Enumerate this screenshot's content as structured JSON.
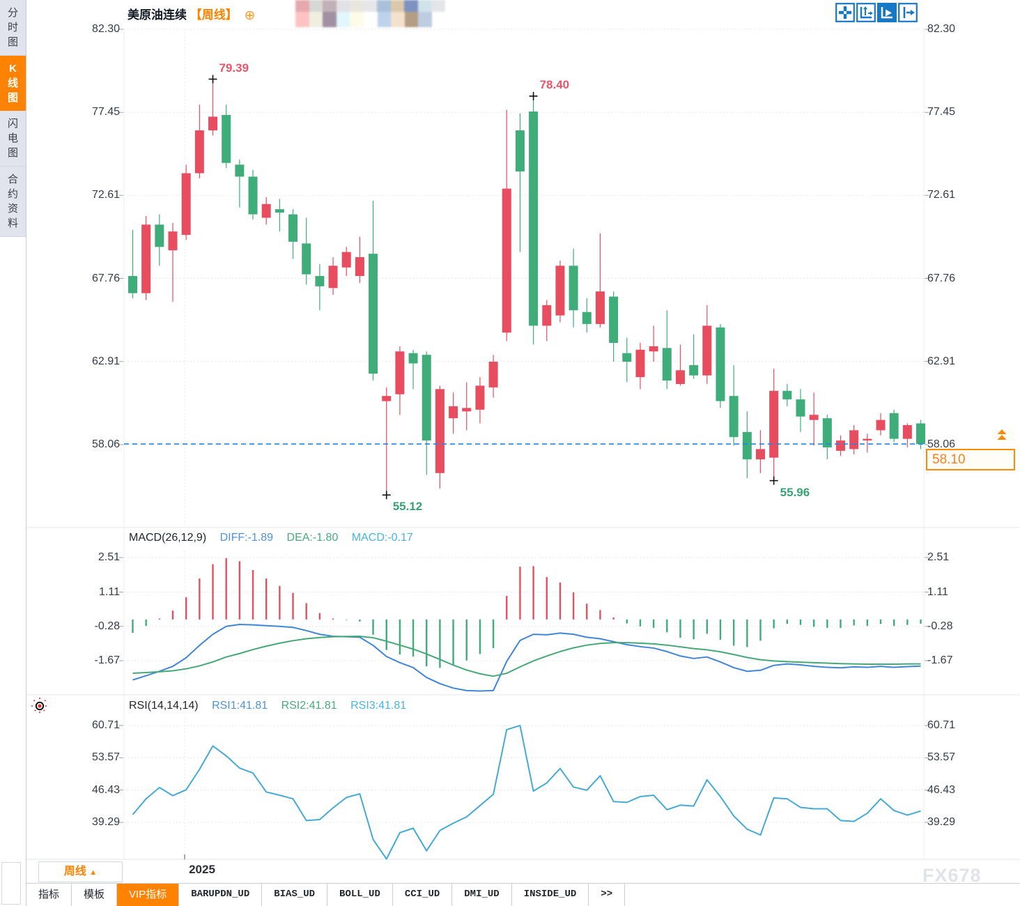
{
  "header": {
    "title": "美原油连续",
    "period_tag": "【周线】",
    "plus_glyph": "⊕",
    "mosaic_row1": [
      "#e5a9ad",
      "#d6d8d4",
      "#c2b0b8",
      "#e1e1e7",
      "#e8e7df",
      "#e5e7e9",
      "#a9c1d9",
      "#dcc9ab",
      "#7d92c1",
      "#d0e2ea",
      "#e3e5e9"
    ],
    "mosaic_row2": [
      "#ffc3c3",
      "#efeee0",
      "#a18fa2",
      "#e1f7fb",
      "#fdfbe9",
      "#ffffff",
      "#bdd3eb",
      "#f4e1cd",
      "#b59d85",
      "#bdcce1"
    ]
  },
  "sidebar": {
    "items": [
      {
        "label": "分时图",
        "active": false
      },
      {
        "label": "K线图",
        "active": true
      },
      {
        "label": "闪电图",
        "active": false
      },
      {
        "label": "合约资料",
        "active": false
      }
    ]
  },
  "toolbar_icons": [
    {
      "name": "pan-crosshair-icon",
      "active": false
    },
    {
      "name": "axis-zoom-icon",
      "active": false
    },
    {
      "name": "axis-play-icon",
      "active": true
    },
    {
      "name": "shift-right-icon",
      "active": false
    }
  ],
  "price_box": {
    "value": "58.10"
  },
  "indicators": {
    "macd": {
      "name": "MACD(26,12,9)",
      "diff": "DIFF:-1.89",
      "dea": "DEA:-1.80",
      "macd": "MACD:-0.17"
    },
    "rsi": {
      "name": "RSI(14,14,14)",
      "rsi1": "RSI1:41.81",
      "rsi2": "RSI2:41.81",
      "rsi3": "RSI3:41.81"
    }
  },
  "bottom": {
    "period_button": "周线",
    "period_arrow": "▲",
    "year_label": "2025",
    "tabs": [
      {
        "label": "指标",
        "active": false,
        "mono": false
      },
      {
        "label": "模板",
        "active": false,
        "mono": false
      },
      {
        "label": "VIP指标",
        "active": true,
        "mono": false
      },
      {
        "label": "BARUPDN_UD",
        "active": false,
        "mono": true
      },
      {
        "label": "BIAS_UD",
        "active": false,
        "mono": true
      },
      {
        "label": "BOLL_UD",
        "active": false,
        "mono": true
      },
      {
        "label": "CCI_UD",
        "active": false,
        "mono": true
      },
      {
        "label": "DMI_UD",
        "active": false,
        "mono": true
      },
      {
        "label": "INSIDE_UD",
        "active": false,
        "mono": true
      },
      {
        "label": ">>",
        "active": false,
        "mono": true
      }
    ],
    "watermark": "FX678"
  },
  "chart_data": [
    {
      "type": "candlestick",
      "title": "美原油连续 周线",
      "up_color": "#e74c5f",
      "down_color": "#3fad79",
      "y_axis_ticks": [
        "82.30",
        "77.45",
        "72.61",
        "67.76",
        "62.91",
        "58.06"
      ],
      "ylim": [
        53.3,
        82.3
      ],
      "x_tick_labels": [
        "2025"
      ],
      "last_price": 58.1,
      "last_price_line_color": "#1f86e8",
      "annotations": [
        {
          "candle_index": 6,
          "position": "high",
          "label": "79.39",
          "color": "#e8556a"
        },
        {
          "candle_index": 30,
          "position": "high",
          "label": "78.40",
          "color": "#e8556a"
        },
        {
          "candle_index": 19,
          "position": "low",
          "label": "55.12",
          "color": "#38a273"
        },
        {
          "candle_index": 48,
          "position": "low",
          "label": "55.96",
          "color": "#38a273"
        }
      ],
      "candles_ohlc": [
        [
          67.9,
          70.6,
          66.6,
          66.9
        ],
        [
          66.9,
          71.4,
          66.5,
          70.9
        ],
        [
          70.9,
          71.5,
          68.5,
          69.6
        ],
        [
          69.4,
          71.0,
          66.4,
          70.5
        ],
        [
          70.3,
          74.4,
          70.0,
          73.9
        ],
        [
          73.9,
          77.9,
          73.6,
          76.4
        ],
        [
          76.4,
          79.39,
          76.1,
          77.2
        ],
        [
          77.3,
          77.9,
          74.2,
          74.5
        ],
        [
          74.4,
          74.7,
          71.9,
          73.7
        ],
        [
          73.7,
          74.1,
          71.2,
          71.5
        ],
        [
          71.3,
          72.5,
          70.9,
          72.1
        ],
        [
          71.8,
          72.4,
          70.5,
          71.6
        ],
        [
          71.5,
          71.8,
          68.9,
          69.9
        ],
        [
          69.8,
          71.3,
          67.4,
          68.0
        ],
        [
          67.9,
          68.6,
          65.9,
          67.3
        ],
        [
          67.2,
          69.0,
          66.8,
          68.5
        ],
        [
          68.4,
          69.6,
          67.9,
          69.3
        ],
        [
          67.9,
          70.2,
          67.5,
          69.0
        ],
        [
          69.2,
          72.3,
          61.8,
          62.2
        ],
        [
          60.6,
          61.4,
          55.12,
          60.9
        ],
        [
          61.0,
          63.8,
          59.8,
          63.5
        ],
        [
          63.4,
          63.6,
          61.3,
          62.8
        ],
        [
          63.3,
          63.5,
          56.3,
          58.3
        ],
        [
          56.4,
          61.5,
          55.5,
          61.3
        ],
        [
          59.6,
          61.1,
          58.7,
          60.3
        ],
        [
          60.0,
          61.7,
          58.9,
          60.2
        ],
        [
          60.1,
          62.0,
          59.3,
          61.5
        ],
        [
          61.4,
          63.3,
          60.8,
          62.9
        ],
        [
          64.6,
          77.6,
          64.1,
          73.0
        ],
        [
          76.4,
          77.4,
          69.3,
          74.0
        ],
        [
          77.5,
          78.4,
          63.9,
          65.0
        ],
        [
          65.0,
          66.5,
          64.1,
          66.2
        ],
        [
          65.6,
          68.8,
          65.2,
          68.5
        ],
        [
          68.5,
          69.5,
          64.9,
          65.9
        ],
        [
          65.8,
          66.6,
          64.6,
          65.1
        ],
        [
          65.1,
          70.4,
          64.9,
          67.0
        ],
        [
          66.7,
          67.0,
          62.9,
          64.0
        ],
        [
          63.4,
          64.3,
          61.7,
          62.9
        ],
        [
          62.0,
          64.0,
          61.3,
          63.6
        ],
        [
          63.5,
          65.0,
          62.9,
          63.8
        ],
        [
          63.7,
          65.9,
          61.3,
          61.8
        ],
        [
          61.6,
          63.9,
          61.5,
          62.4
        ],
        [
          62.7,
          64.5,
          61.9,
          62.1
        ],
        [
          62.1,
          66.2,
          61.6,
          65.0
        ],
        [
          64.9,
          65.1,
          60.2,
          60.6
        ],
        [
          60.9,
          62.7,
          58.0,
          58.5
        ],
        [
          58.8,
          60.0,
          56.1,
          57.2
        ],
        [
          57.2,
          58.9,
          56.4,
          57.8
        ],
        [
          57.3,
          62.5,
          55.96,
          61.2
        ],
        [
          61.2,
          61.6,
          60.3,
          60.7
        ],
        [
          60.7,
          61.3,
          58.8,
          59.7
        ],
        [
          59.5,
          61.1,
          58.0,
          59.8
        ],
        [
          59.6,
          59.8,
          57.2,
          57.9
        ],
        [
          57.7,
          58.6,
          57.4,
          58.3
        ],
        [
          57.8,
          59.2,
          57.5,
          58.9
        ],
        [
          58.3,
          58.7,
          57.6,
          58.4
        ],
        [
          58.9,
          59.9,
          58.6,
          59.5
        ],
        [
          59.9,
          60.1,
          58.2,
          58.4
        ],
        [
          58.4,
          59.3,
          57.9,
          59.2
        ],
        [
          59.3,
          59.5,
          57.8,
          58.1
        ]
      ]
    },
    {
      "type": "bar",
      "title": "MACD(26,12,9)",
      "y_axis_ticks": [
        "2.51",
        "1.11",
        "-0.28",
        "-1.67"
      ],
      "ylim": [
        -3.05,
        2.75
      ],
      "series": [
        {
          "name": "DIFF",
          "color": "#3f86d8",
          "values": [
            -2.45,
            -2.28,
            -2.1,
            -1.9,
            -1.55,
            -1.05,
            -0.6,
            -0.28,
            -0.2,
            -0.22,
            -0.25,
            -0.28,
            -0.32,
            -0.45,
            -0.6,
            -0.68,
            -0.7,
            -0.72,
            -1.05,
            -1.5,
            -1.75,
            -1.95,
            -2.35,
            -2.6,
            -2.78,
            -2.88,
            -2.9,
            -2.88,
            -1.7,
            -0.85,
            -0.6,
            -0.62,
            -0.55,
            -0.6,
            -0.72,
            -0.78,
            -0.9,
            -1.02,
            -1.1,
            -1.16,
            -1.3,
            -1.48,
            -1.58,
            -1.52,
            -1.72,
            -1.95,
            -2.1,
            -2.06,
            -1.86,
            -1.8,
            -1.84,
            -1.9,
            -1.94,
            -1.96,
            -1.92,
            -1.94,
            -1.9,
            -1.94,
            -1.91,
            -1.89
          ]
        },
        {
          "name": "DEA",
          "color": "#44a878",
          "values": [
            -2.18,
            -2.15,
            -2.12,
            -2.08,
            -2.0,
            -1.88,
            -1.72,
            -1.52,
            -1.38,
            -1.22,
            -1.08,
            -0.96,
            -0.86,
            -0.78,
            -0.73,
            -0.7,
            -0.69,
            -0.68,
            -0.74,
            -0.88,
            -1.04,
            -1.2,
            -1.4,
            -1.62,
            -1.85,
            -2.05,
            -2.2,
            -2.3,
            -2.18,
            -1.92,
            -1.68,
            -1.48,
            -1.3,
            -1.15,
            -1.04,
            -0.97,
            -0.94,
            -0.94,
            -0.96,
            -0.99,
            -1.04,
            -1.11,
            -1.18,
            -1.23,
            -1.31,
            -1.42,
            -1.54,
            -1.63,
            -1.68,
            -1.71,
            -1.73,
            -1.75,
            -1.77,
            -1.79,
            -1.8,
            -1.81,
            -1.81,
            -1.81,
            -1.8,
            -1.8
          ]
        },
        {
          "name": "MACD_hist",
          "color_up": "#e05260",
          "color_down": "#3fad79",
          "values": [
            -0.54,
            -0.26,
            0.04,
            0.36,
            0.9,
            1.66,
            2.24,
            2.48,
            2.36,
            2.0,
            1.66,
            1.36,
            1.08,
            0.66,
            0.26,
            0.04,
            -0.02,
            -0.08,
            -0.62,
            -1.24,
            -1.42,
            -1.5,
            -1.9,
            -1.96,
            -1.86,
            -1.66,
            -1.4,
            -1.16,
            0.96,
            2.14,
            2.16,
            1.72,
            1.5,
            1.1,
            0.64,
            0.38,
            0.08,
            -0.16,
            -0.28,
            -0.34,
            -0.52,
            -0.74,
            -0.8,
            -0.58,
            -0.82,
            -1.06,
            -1.12,
            -0.86,
            -0.36,
            -0.18,
            -0.22,
            -0.3,
            -0.34,
            -0.34,
            -0.24,
            -0.26,
            -0.18,
            -0.26,
            -0.22,
            -0.17
          ]
        }
      ]
    },
    {
      "type": "line",
      "title": "RSI(14,14,14)",
      "y_axis_ticks": [
        "60.71",
        "53.57",
        "46.43",
        "39.29"
      ],
      "ylim": [
        28.0,
        63.5
      ],
      "series": [
        {
          "name": "RSI1",
          "color": "#45a9d6",
          "values": [
            41.0,
            44.5,
            47.0,
            45.2,
            46.5,
            51.0,
            56.2,
            54.0,
            51.3,
            50.2,
            46.0,
            45.3,
            44.5,
            39.7,
            39.9,
            42.5,
            44.8,
            45.6,
            35.5,
            31.2,
            37.0,
            38.0,
            33.0,
            37.5,
            39.1,
            40.5,
            43.0,
            45.5,
            59.8,
            60.7,
            46.2,
            48.0,
            51.2,
            47.1,
            46.4,
            49.6,
            43.9,
            43.7,
            45.0,
            45.3,
            42.1,
            43.1,
            42.9,
            48.7,
            45.0,
            40.7,
            37.8,
            36.5,
            44.7,
            44.5,
            42.6,
            42.3,
            42.3,
            39.7,
            39.5,
            41.3,
            44.5,
            41.9,
            40.9,
            41.81
          ]
        }
      ]
    }
  ]
}
